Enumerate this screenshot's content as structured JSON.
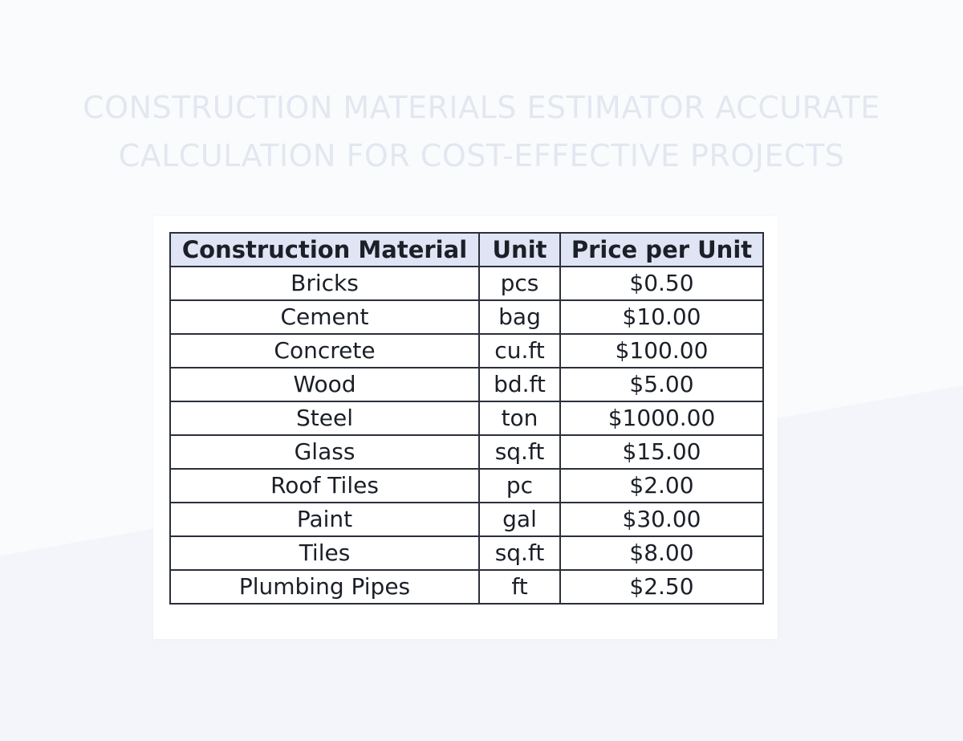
{
  "title_lines": [
    "CONSTRUCTION MATERIALS ESTIMATOR ACCURATE",
    "CALCULATION FOR COST-EFFECTIVE PROJECTS"
  ],
  "table": {
    "headers": [
      "Construction Material",
      "Unit",
      "Price per Unit"
    ],
    "rows": [
      [
        "Bricks",
        "pcs",
        "$0.50"
      ],
      [
        "Cement",
        "bag",
        "$10.00"
      ],
      [
        "Concrete",
        "cu.ft",
        "$100.00"
      ],
      [
        "Wood",
        "bd.ft",
        "$5.00"
      ],
      [
        "Steel",
        "ton",
        "$1000.00"
      ],
      [
        "Glass",
        "sq.ft",
        "$15.00"
      ],
      [
        "Roof Tiles",
        "pc",
        "$2.00"
      ],
      [
        "Paint",
        "gal",
        "$30.00"
      ],
      [
        "Tiles",
        "sq.ft",
        "$8.00"
      ],
      [
        "Plumbing Pipes",
        "ft",
        "$2.50"
      ]
    ]
  },
  "colors": {
    "title": "#e3e7f0",
    "header_bg": "#dfe5f4",
    "border": "#2a2f3a",
    "text": "#1b1f27",
    "page_bg": "#f3f5fa"
  }
}
